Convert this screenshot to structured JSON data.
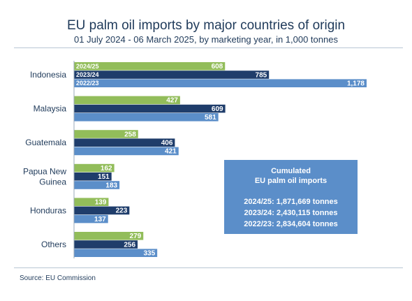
{
  "title": "EU palm oil imports by major countries of origin",
  "subtitle": "01 July 2024 - 06 March 2025, by marketing year, in 1,000 tonnes",
  "source": "Source: EU Commission",
  "infobox": {
    "heading1": "Cumulated",
    "heading2": "EU palm oil imports",
    "lines": [
      "2024/25: 1,871,669 tonnes",
      "2023/24: 2,430,115 tonnes",
      "2022/23: 2,834,604 tonnes"
    ]
  },
  "colors": {
    "s2425": "#92bd5a",
    "s2324": "#1f3d6b",
    "s2223": "#5b8ec9"
  },
  "chart_data": {
    "type": "bar",
    "orientation": "horizontal",
    "categories": [
      "Indonesia",
      "Malaysia",
      "Guatemala",
      "Papua New Guinea",
      "Honduras",
      "Others"
    ],
    "category_lines": [
      [
        "Indonesia"
      ],
      [
        "Malaysia"
      ],
      [
        "Guatemala"
      ],
      [
        "Papua New",
        "Guinea"
      ],
      [
        "Honduras"
      ],
      [
        "Others"
      ]
    ],
    "series": [
      {
        "name": "2024/25",
        "color": "#92bd5a",
        "values": [
          608,
          427,
          258,
          162,
          139,
          279
        ],
        "labels": [
          "608",
          "427",
          "258",
          "162",
          "139",
          "279"
        ]
      },
      {
        "name": "2023/24",
        "color": "#1f3d6b",
        "values": [
          785,
          609,
          406,
          151,
          223,
          256
        ],
        "labels": [
          "785",
          "609",
          "406",
          "151",
          "223",
          "256"
        ]
      },
      {
        "name": "2022/23",
        "color": "#5b8ec9",
        "values": [
          1178,
          581,
          421,
          183,
          137,
          335
        ],
        "labels": [
          "1,178",
          "581",
          "421",
          "183",
          "137",
          "335"
        ]
      }
    ],
    "xlim": [
      0,
      1178
    ],
    "legend": "inside first group bars"
  }
}
